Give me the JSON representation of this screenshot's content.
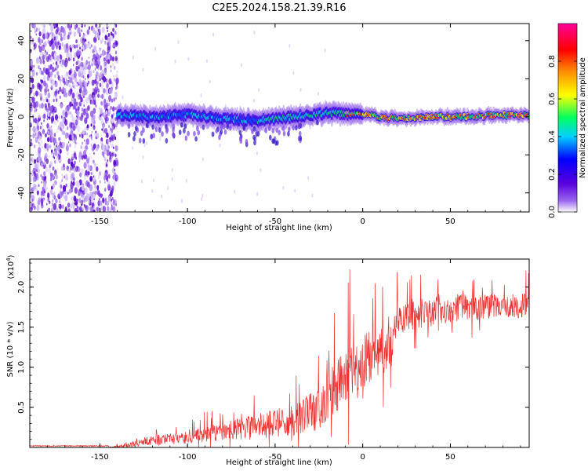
{
  "title": "C2E5.2024.158.21.39.R16",
  "chart_data": [
    {
      "type": "heatmap",
      "xlabel": "Height of straight line (km)",
      "ylabel": "Frequency (Hz)",
      "xlim": [
        -190,
        95
      ],
      "ylim": [
        -50,
        49
      ],
      "xticks": [
        -150,
        -100,
        -50,
        0,
        50
      ],
      "yticks": [
        -40,
        -20,
        0,
        20,
        40
      ],
      "colorbar": {
        "label": "Normalized spectral amplitude",
        "range": [
          0,
          1
        ],
        "ticks": [
          0.0,
          0.2,
          0.4,
          0.6,
          0.8
        ],
        "tick_labels": [
          "0.0",
          "0.2",
          "0.4",
          "0.6",
          "0.8"
        ],
        "colormap": "rainbow (white-purple-blue-cyan-green-yellow-red-magenta)"
      },
      "ridge": {
        "x": [
          -140,
          -120,
          -100,
          -80,
          -60,
          -40,
          -20,
          0,
          20,
          40,
          60,
          80,
          95
        ],
        "freq": [
          1,
          0,
          1,
          -1,
          -2,
          0,
          2,
          1,
          -1,
          0,
          0,
          1,
          1
        ]
      }
    },
    {
      "type": "line",
      "series": [
        {
          "name": "SNR",
          "color": "#ee3030"
        }
      ],
      "xlabel": "Height of straight line (km)",
      "ylabel": "SNR (10 * v/v)",
      "y_multiplier": "(x10",
      "y_multiplier_exp": "4",
      "y_multiplier_close": ")",
      "xlim": [
        -190,
        95
      ],
      "ylim": [
        0,
        23500
      ],
      "xticks": [
        -150,
        -100,
        -50,
        0,
        50
      ],
      "yticks": [
        0.5,
        1.0,
        1.5,
        2.0
      ],
      "ytick_labels": [
        "0.5",
        "1.0",
        "1.5",
        "2.0"
      ],
      "envelope": {
        "x": [
          -190,
          -145,
          -135,
          -120,
          -100,
          -80,
          -60,
          -40,
          -25,
          -10,
          5,
          15,
          20,
          40,
          60,
          80,
          95
        ],
        "mean": [
          0,
          0,
          300,
          900,
          1200,
          2000,
          2700,
          3300,
          4800,
          9000,
          11500,
          12500,
          16000,
          17000,
          17500,
          17500,
          17800
        ],
        "spread": [
          150,
          150,
          400,
          900,
          1200,
          1800,
          2500,
          3000,
          4500,
          5500,
          5000,
          4500,
          3000,
          2800,
          2500,
          2500,
          2500
        ]
      }
    }
  ]
}
